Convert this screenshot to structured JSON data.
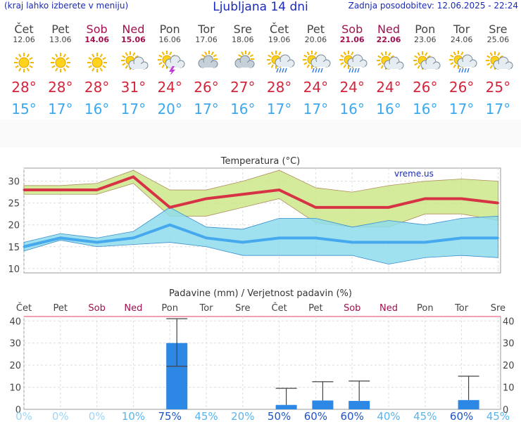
{
  "header": {
    "left_note": "(kraj lahko izberete v meniju)",
    "title": "Ljubljana 14 dni",
    "updated": "Zadnja posodobitev: 12.06.2025 - 22:24"
  },
  "days": [
    {
      "name": "Čet",
      "date": "12.06",
      "weekend": false,
      "icon": "sun-icon",
      "max": "28°",
      "min": "15°"
    },
    {
      "name": "Pet",
      "date": "13.06",
      "weekend": false,
      "icon": "sun-icon",
      "max": "28°",
      "min": "17°"
    },
    {
      "name": "Sob",
      "date": "14.06",
      "weekend": true,
      "icon": "sun-icon",
      "max": "28°",
      "min": "16°"
    },
    {
      "name": "Ned",
      "date": "15.06",
      "weekend": true,
      "icon": "sun-cloud-icon",
      "max": "31°",
      "min": "17°"
    },
    {
      "name": "Pon",
      "date": "16.06",
      "weekend": false,
      "icon": "sun-thunder-icon",
      "max": "24°",
      "min": "20°"
    },
    {
      "name": "Tor",
      "date": "17.06",
      "weekend": false,
      "icon": "sun-cloudy-icon",
      "max": "26°",
      "min": "17°"
    },
    {
      "name": "Sre",
      "date": "18.06",
      "weekend": false,
      "icon": "sun-cloudy-icon",
      "max": "27°",
      "min": "16°"
    },
    {
      "name": "Čet",
      "date": "19.06",
      "weekend": false,
      "icon": "sun-rain-icon",
      "max": "28°",
      "min": "17°"
    },
    {
      "name": "Pet",
      "date": "20.06",
      "weekend": false,
      "icon": "sun-rain-icon",
      "max": "24°",
      "min": "17°"
    },
    {
      "name": "Sob",
      "date": "21.06",
      "weekend": true,
      "icon": "sun-rain-icon",
      "max": "24°",
      "min": "16°"
    },
    {
      "name": "Ned",
      "date": "22.06",
      "weekend": true,
      "icon": "sun-cloud-icon",
      "max": "24°",
      "min": "16°"
    },
    {
      "name": "Pon",
      "date": "23.06",
      "weekend": false,
      "icon": "sun-cloud-icon",
      "max": "26°",
      "min": "16°"
    },
    {
      "name": "Tor",
      "date": "24.06",
      "weekend": false,
      "icon": "sun-rain-icon",
      "max": "26°",
      "min": "17°"
    },
    {
      "name": "Sre",
      "date": "25.06",
      "weekend": false,
      "icon": "sun-cloud-icon",
      "max": "25°",
      "min": "17°"
    }
  ],
  "chart_data": [
    {
      "type": "line",
      "title": "Temperatura (°C)",
      "watermark": "vreme.us",
      "ylim": [
        9,
        33
      ],
      "yticks": [
        10,
        15,
        20,
        25,
        30
      ],
      "grid": true,
      "series": [
        {
          "role": "max",
          "color": "#d63345",
          "values": [
            28,
            28,
            28,
            31,
            24,
            26,
            27,
            28,
            24,
            24,
            24,
            26,
            26,
            25
          ],
          "band_low": [
            27,
            27,
            27,
            29.5,
            22,
            22,
            24,
            26,
            20.5,
            19.5,
            19.5,
            22.5,
            22.5,
            21
          ],
          "band_high": [
            29,
            29,
            29.5,
            32.5,
            28,
            28,
            30,
            32.5,
            28.5,
            27.5,
            29,
            30,
            30.5,
            30
          ]
        },
        {
          "role": "min",
          "color": "#46a9ee",
          "values": [
            15,
            17,
            16,
            17,
            20,
            17,
            16,
            17,
            17,
            16,
            16,
            16,
            17,
            17
          ],
          "band_low": [
            14,
            16.5,
            15,
            15.5,
            16,
            15,
            13,
            13,
            13,
            13,
            11,
            12.5,
            13,
            12.5
          ],
          "band_high": [
            16,
            18,
            17,
            18.5,
            24,
            19.5,
            19,
            21.5,
            21.5,
            19.5,
            21,
            20,
            21.5,
            22
          ]
        }
      ]
    },
    {
      "type": "bar",
      "title": "Padavine (mm) / Verjetnost padavin (%)",
      "categories": [
        "Čet",
        "Pet",
        "Sob",
        "Ned",
        "Pon",
        "Tor",
        "Sre",
        "Čet",
        "Pet",
        "Sob",
        "Ned",
        "Pon",
        "Tor",
        "Sre"
      ],
      "weekend": [
        false,
        false,
        true,
        true,
        false,
        false,
        false,
        false,
        false,
        true,
        true,
        false,
        false,
        false
      ],
      "ylim": [
        0,
        42
      ],
      "yticks": [
        0,
        10,
        20,
        30,
        40
      ],
      "values": [
        0,
        0,
        0,
        0,
        30,
        0,
        0,
        2,
        4,
        3.8,
        0,
        0,
        4.2,
        0
      ],
      "err_low": [
        null,
        null,
        null,
        null,
        19.5,
        null,
        null,
        null,
        null,
        null,
        null,
        null,
        null,
        null
      ],
      "err_high": [
        null,
        null,
        null,
        null,
        41,
        null,
        null,
        9.5,
        12.5,
        12.8,
        null,
        null,
        15,
        null
      ],
      "probability": [
        "0%",
        "0%",
        "0%",
        "10%",
        "75%",
        "45%",
        "20%",
        "50%",
        "60%",
        "60%",
        "40%",
        "45%",
        "60%",
        "45%"
      ],
      "probability_values": [
        0,
        0,
        0,
        10,
        75,
        45,
        20,
        50,
        60,
        60,
        40,
        45,
        60,
        45
      ],
      "bar_color": "#2d88e5"
    }
  ]
}
